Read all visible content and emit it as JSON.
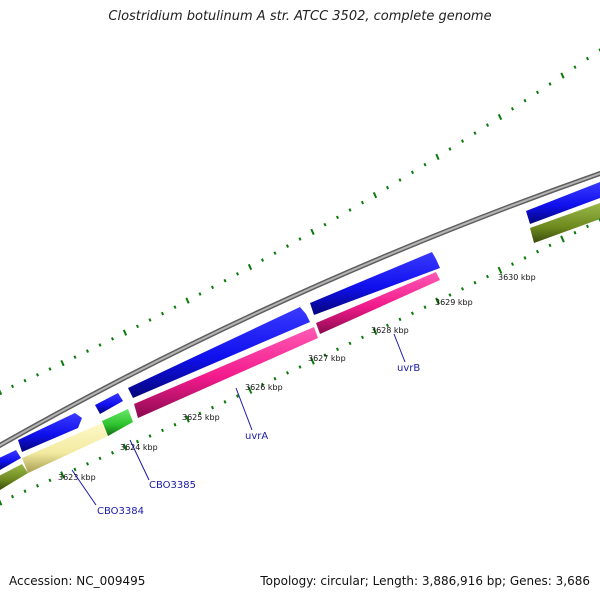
{
  "title": "Clostridium botulinum A str. ATCC 3502, complete genome",
  "accession": "Accession: NC_009495",
  "summary": "Topology: circular; Length: 3,886,916 bp; Genes: 3,686",
  "ticks": [
    {
      "kbp": 3623,
      "label": "3623 kbp"
    },
    {
      "kbp": 3624,
      "label": "3624 kbp"
    },
    {
      "kbp": 3625,
      "label": "3625 kbp"
    },
    {
      "kbp": 3626,
      "label": "3626 kbp"
    },
    {
      "kbp": 3627,
      "label": "3627 kbp"
    },
    {
      "kbp": 3628,
      "label": "3628 kbp"
    },
    {
      "kbp": 3629,
      "label": "3629 kbp"
    },
    {
      "kbp": 3630,
      "label": "3630 kbp"
    }
  ],
  "genes": [
    {
      "name": "CBO3384",
      "color": "#f2eaa0"
    },
    {
      "name": "CBO3385",
      "color": "#2cc12c"
    },
    {
      "name": "uvrA",
      "color": "#f21a8c"
    },
    {
      "name": "uvrB",
      "color": "#f21a8c"
    }
  ],
  "colors": {
    "cds_track": "#1010ee",
    "cds_shade": "#05057a",
    "other_track": "#6e8a1f",
    "backbone": "#8a8a8a",
    "ticks": "#0a7a0a"
  }
}
